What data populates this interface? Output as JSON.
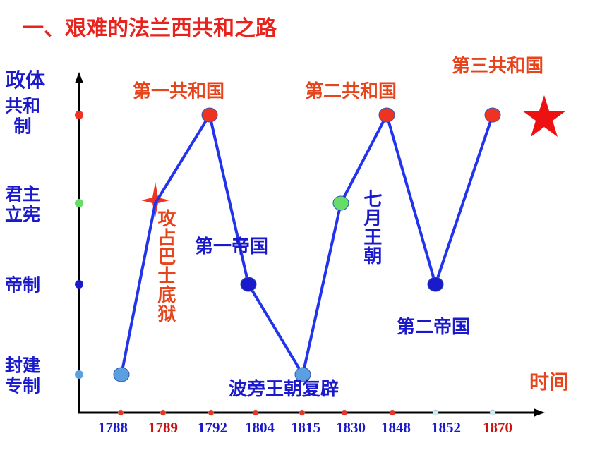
{
  "chart_data": {
    "type": "line",
    "title": "一、艰难的法兰西共和之路",
    "y_label": "政体",
    "x_label": "时间",
    "y_categories": [
      "封建专制",
      "帝制",
      "君主立宪",
      "共和制"
    ],
    "y_category_colors": [
      "#5aa0e0",
      "#1a1acc",
      "#66dd66",
      "#ee3322"
    ],
    "categories": [
      "1788",
      "1789",
      "1792",
      "1804",
      "1815",
      "1830",
      "1848",
      "1852",
      "1870"
    ],
    "category_colors": [
      "#1a1acc",
      "#cc1111",
      "#1a1acc",
      "#1a1acc",
      "#1a1acc",
      "#1a1acc",
      "#1a1acc",
      "#1a1acc",
      "#cc1111"
    ],
    "values": [
      "封建专制",
      "君主立宪",
      "共和制",
      "帝制",
      "封建专制",
      "君主立宪",
      "共和制",
      "帝制",
      "共和制"
    ],
    "line_color": "#2233ee",
    "annotations": [
      {
        "text": "第一共和国",
        "color": "#e8441c"
      },
      {
        "text": "第二共和国",
        "color": "#e8441c"
      },
      {
        "text": "第三共和国",
        "color": "#e8441c"
      },
      {
        "text": "攻占巴士底狱",
        "color": "#e8441c"
      },
      {
        "text": "第一帝国",
        "color": "#1a1acc"
      },
      {
        "text": "七月王朝",
        "color": "#1a1acc"
      },
      {
        "text": "第二帝国",
        "color": "#1a1acc"
      },
      {
        "text": "波旁王朝复辟",
        "color": "#1a1acc"
      }
    ]
  }
}
